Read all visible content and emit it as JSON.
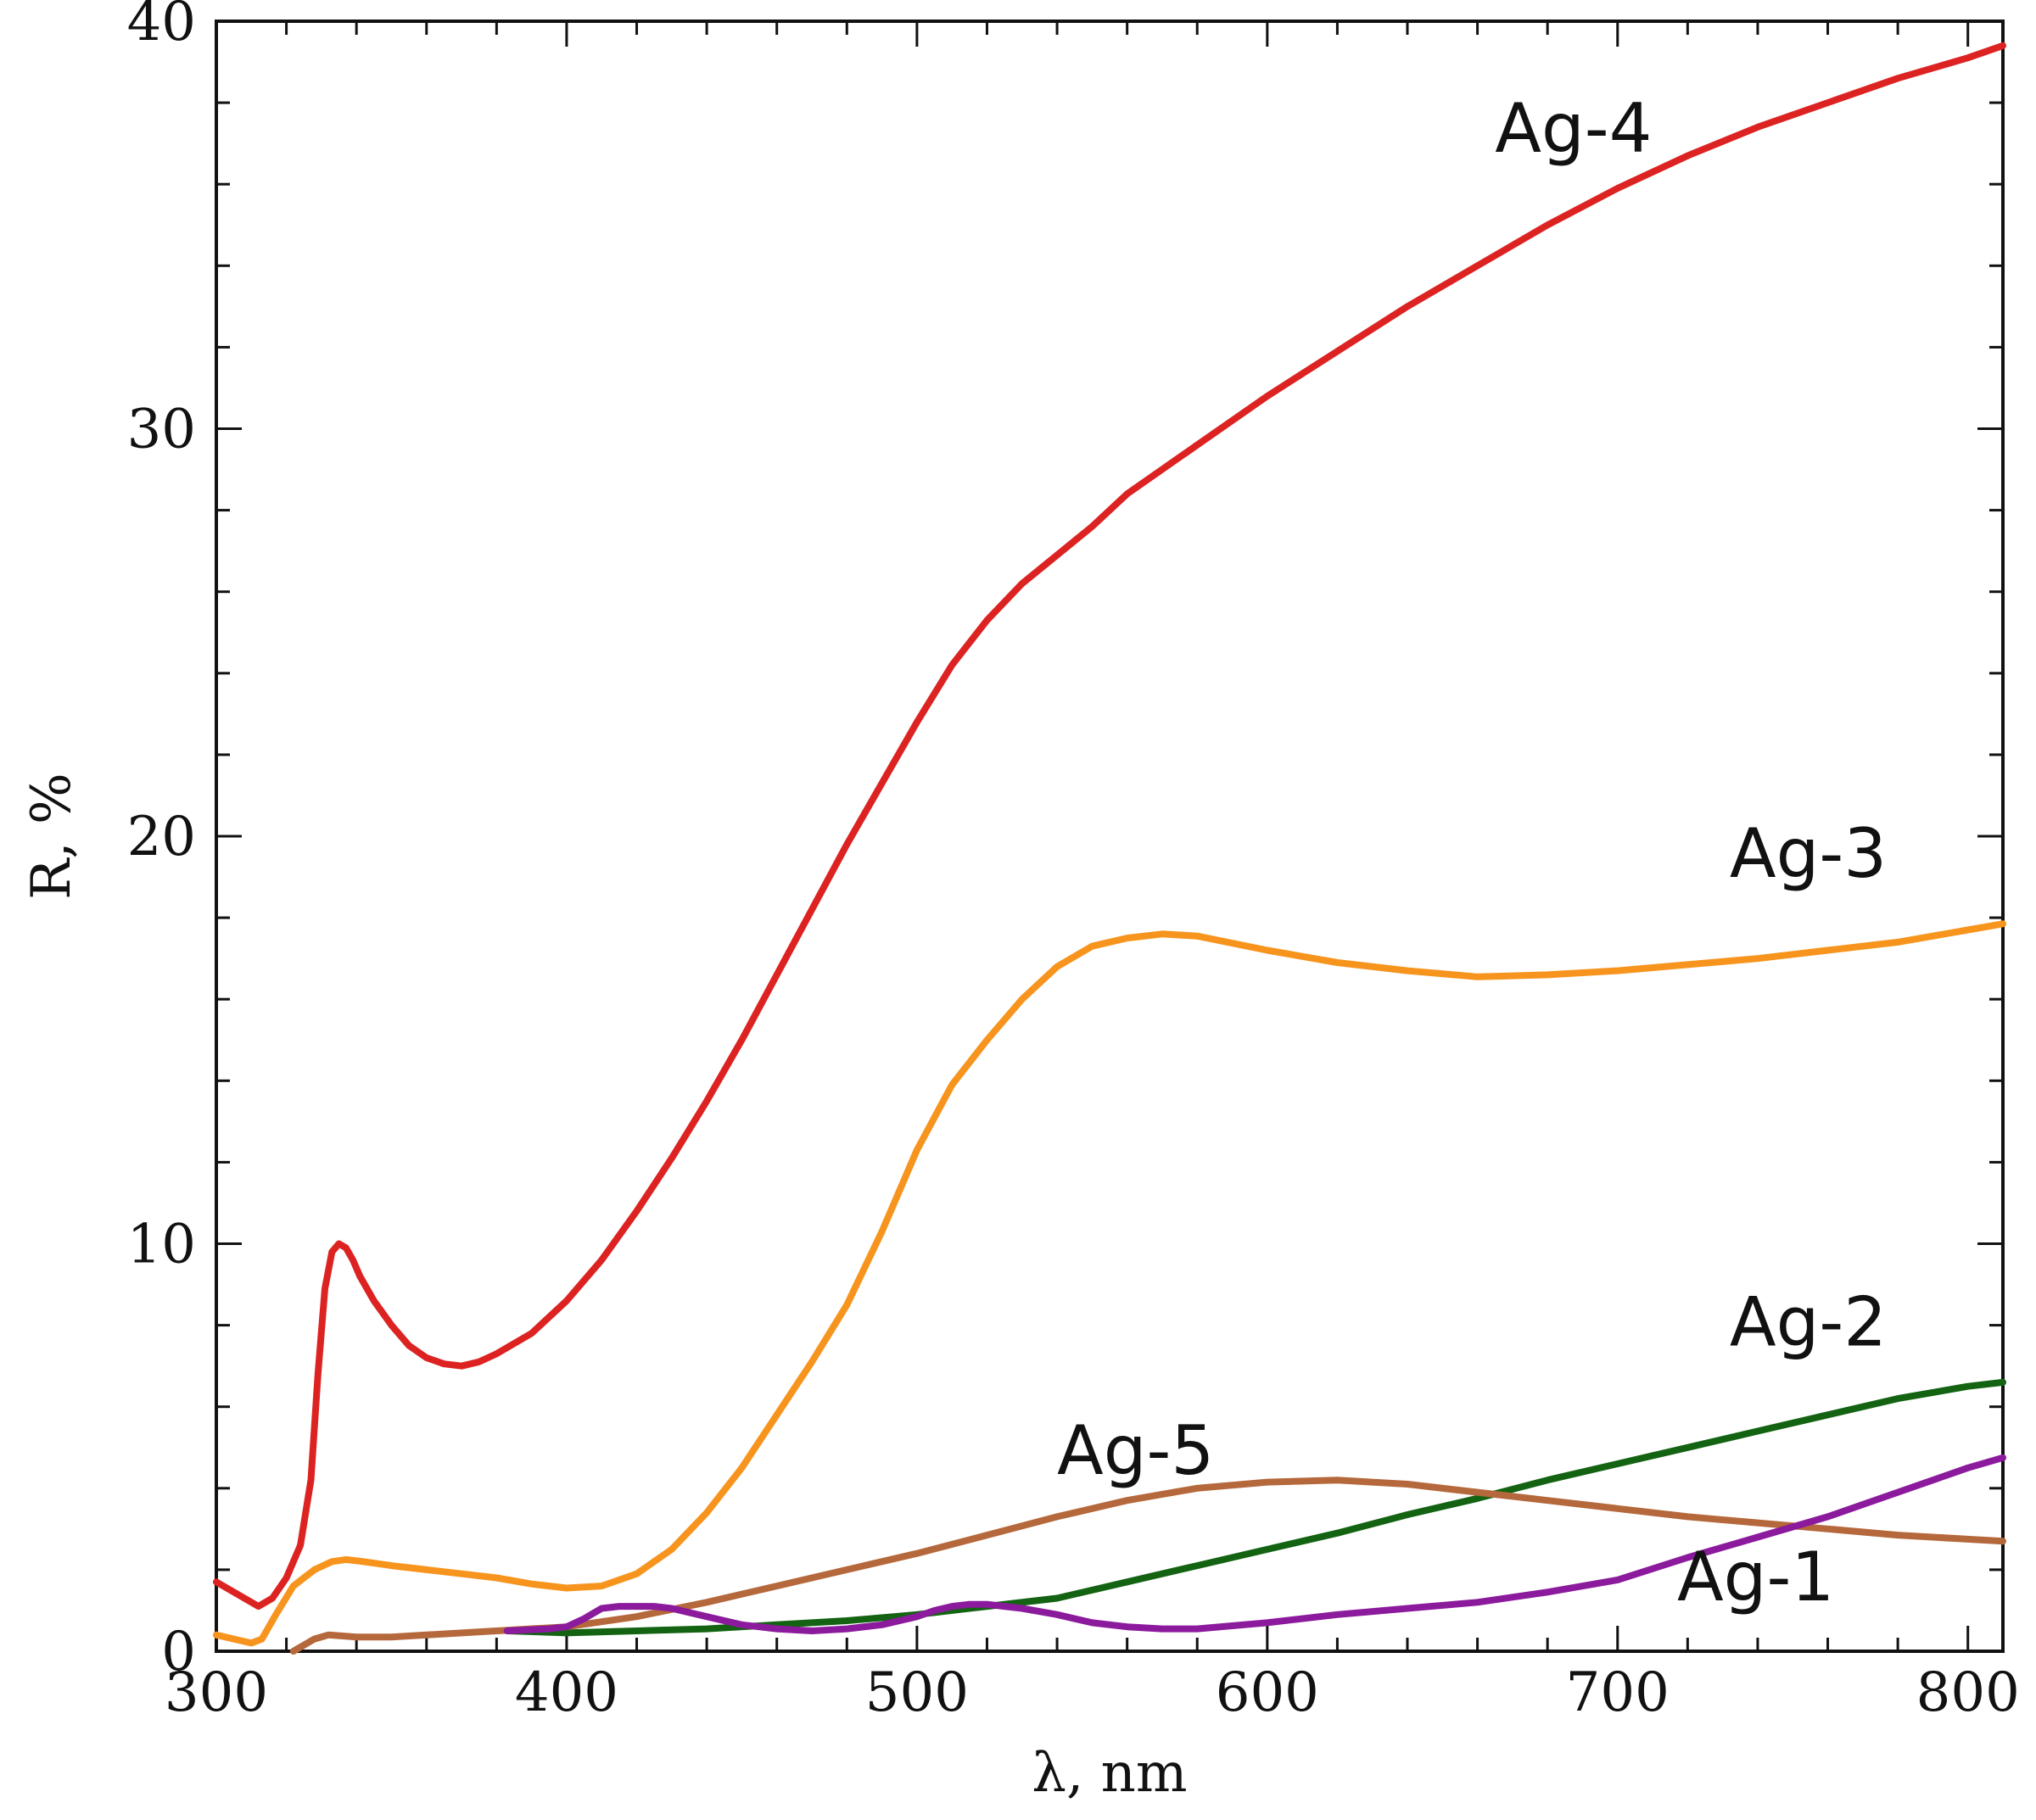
{
  "chart_data": {
    "type": "line",
    "title": "",
    "xlabel": "λ, nm",
    "ylabel": "R, %",
    "xlim": [
      300,
      810
    ],
    "ylim": [
      0,
      40
    ],
    "xticks": [
      300,
      400,
      500,
      600,
      700,
      800
    ],
    "yticks": [
      0,
      10,
      20,
      30,
      40
    ],
    "x_minor_step": 20,
    "y_minor_step": 2,
    "grid": false,
    "series": [
      {
        "name": "Ag-4",
        "color": "#dd2222",
        "label_anchor": [
          665,
          36.8
        ],
        "x": [
          300,
          306,
          312,
          316,
          320,
          324,
          327,
          329,
          331,
          333,
          335,
          337,
          339,
          341,
          345,
          350,
          355,
          360,
          365,
          370,
          375,
          380,
          390,
          400,
          410,
          420,
          430,
          440,
          450,
          460,
          470,
          480,
          490,
          500,
          510,
          520,
          530,
          540,
          550,
          560,
          570,
          580,
          600,
          620,
          640,
          660,
          680,
          700,
          720,
          740,
          760,
          780,
          800,
          810
        ],
        "y": [
          1.7,
          1.4,
          1.1,
          1.3,
          1.8,
          2.6,
          4.2,
          6.8,
          8.9,
          9.8,
          10.0,
          9.9,
          9.6,
          9.2,
          8.6,
          8.0,
          7.5,
          7.2,
          7.05,
          7.0,
          7.1,
          7.3,
          7.8,
          8.6,
          9.6,
          10.8,
          12.1,
          13.5,
          15.0,
          16.6,
          18.2,
          19.8,
          21.3,
          22.8,
          24.2,
          25.3,
          26.2,
          26.9,
          27.6,
          28.4,
          29.0,
          29.6,
          30.8,
          31.9,
          33.0,
          34.0,
          35.0,
          35.9,
          36.7,
          37.4,
          38.0,
          38.6,
          39.1,
          39.4
        ]
      },
      {
        "name": "Ag-3",
        "color": "#f7941d",
        "label_anchor": [
          732,
          19.0
        ],
        "x": [
          300,
          305,
          310,
          313,
          317,
          322,
          328,
          333,
          337,
          342,
          350,
          360,
          370,
          380,
          390,
          400,
          410,
          420,
          430,
          440,
          450,
          460,
          470,
          480,
          490,
          500,
          510,
          520,
          530,
          540,
          550,
          560,
          570,
          580,
          600,
          620,
          640,
          660,
          680,
          700,
          720,
          740,
          760,
          780,
          800,
          810
        ],
        "y": [
          0.4,
          0.3,
          0.2,
          0.3,
          0.9,
          1.6,
          2.0,
          2.2,
          2.25,
          2.2,
          2.1,
          2.0,
          1.9,
          1.8,
          1.65,
          1.55,
          1.6,
          1.9,
          2.5,
          3.4,
          4.5,
          5.8,
          7.1,
          8.5,
          10.3,
          12.3,
          13.9,
          15.0,
          16.0,
          16.8,
          17.3,
          17.5,
          17.6,
          17.55,
          17.2,
          16.9,
          16.7,
          16.55,
          16.6,
          16.7,
          16.85,
          17.0,
          17.2,
          17.4,
          17.7,
          17.85
        ]
      },
      {
        "name": "Ag-2",
        "color": "#136313",
        "label_anchor": [
          732,
          7.5
        ],
        "x": [
          383,
          400,
          420,
          440,
          460,
          480,
          500,
          520,
          540,
          560,
          580,
          600,
          620,
          640,
          660,
          680,
          700,
          720,
          740,
          760,
          780,
          800,
          810
        ],
        "y": [
          0.5,
          0.45,
          0.5,
          0.55,
          0.65,
          0.75,
          0.9,
          1.1,
          1.3,
          1.7,
          2.1,
          2.5,
          2.9,
          3.35,
          3.75,
          4.2,
          4.6,
          5.0,
          5.4,
          5.8,
          6.2,
          6.5,
          6.6
        ]
      },
      {
        "name": "Ag-5",
        "color": "#b5683b",
        "label_anchor": [
          540,
          4.35
        ],
        "x": [
          322,
          328,
          332,
          340,
          350,
          360,
          380,
          400,
          420,
          440,
          460,
          480,
          500,
          520,
          540,
          560,
          580,
          600,
          620,
          640,
          660,
          680,
          700,
          720,
          740,
          760,
          780,
          800,
          810
        ],
        "y": [
          0.0,
          0.3,
          0.4,
          0.35,
          0.35,
          0.4,
          0.5,
          0.6,
          0.85,
          1.2,
          1.6,
          2.0,
          2.4,
          2.85,
          3.3,
          3.7,
          4.0,
          4.15,
          4.2,
          4.1,
          3.9,
          3.7,
          3.5,
          3.3,
          3.15,
          3.0,
          2.85,
          2.75,
          2.7
        ]
      },
      {
        "name": "Ag-1",
        "color": "#8b1a9c",
        "label_anchor": [
          717,
          1.25
        ],
        "x": [
          383,
          395,
          400,
          405,
          410,
          415,
          420,
          425,
          430,
          435,
          440,
          450,
          460,
          470,
          480,
          490,
          500,
          505,
          510,
          515,
          520,
          525,
          530,
          540,
          550,
          560,
          570,
          580,
          600,
          620,
          640,
          660,
          680,
          700,
          720,
          740,
          760,
          780,
          800,
          810
        ],
        "y": [
          0.5,
          0.55,
          0.6,
          0.8,
          1.05,
          1.1,
          1.1,
          1.1,
          1.05,
          0.95,
          0.85,
          0.65,
          0.55,
          0.5,
          0.55,
          0.65,
          0.85,
          1.0,
          1.1,
          1.15,
          1.15,
          1.1,
          1.05,
          0.9,
          0.7,
          0.6,
          0.55,
          0.55,
          0.7,
          0.9,
          1.05,
          1.2,
          1.45,
          1.75,
          2.3,
          2.8,
          3.3,
          3.9,
          4.5,
          4.75
        ]
      }
    ]
  }
}
